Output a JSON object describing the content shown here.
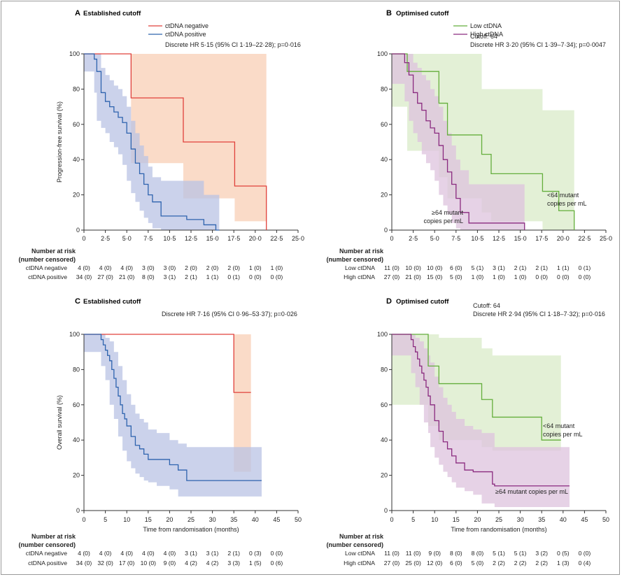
{
  "colors": {
    "neg": "#e0403a",
    "negBand": "#f8cfb6",
    "pos": "#2e63ae",
    "posBand": "#b9c3e4",
    "low": "#64ae3c",
    "lowBand": "#d9ebc8",
    "high": "#8a2a7f",
    "highBand": "#ddc3de"
  },
  "risk_header": [
    "Number at risk",
    "(number censored)"
  ],
  "chart_data": [
    {
      "type": "line",
      "step": true,
      "letter": "A",
      "title": "Established cutoff",
      "ylabel": "Progression-free survival (%)",
      "xlabel": "",
      "xlim": [
        0,
        25
      ],
      "ylim": [
        0,
        100
      ],
      "xticks": [
        "0",
        "2·5",
        "5·0",
        "7·5",
        "10·5",
        "12·5",
        "15·0",
        "17·5",
        "20·0",
        "22·5",
        "25·0"
      ],
      "yticks": [
        "0",
        "20",
        "40",
        "60",
        "80",
        "100"
      ],
      "legend": [
        "ctDNA negative",
        "ctDNA positive"
      ],
      "annotation": "Discrete HR 5·15 (95% CI 1·19–22·28); p=0·016",
      "series": [
        {
          "name": "ctDNA negative",
          "color": "neg",
          "x": [
            0,
            5.5,
            5.5,
            11.6,
            11.6,
            17.6,
            17.6,
            21.3,
            21.3
          ],
          "y": [
            100,
            100,
            75,
            75,
            50,
            50,
            25,
            25,
            0
          ],
          "band_x": [
            0,
            5.5,
            5.5,
            11.6,
            11.6,
            17.6,
            17.6,
            21.3
          ],
          "band_upper": [
            100,
            100,
            100,
            100,
            100,
            100,
            100,
            100
          ],
          "band_lower": [
            100,
            100,
            38,
            38,
            18,
            18,
            5,
            5
          ]
        },
        {
          "name": "ctDNA positive",
          "color": "pos",
          "x": [
            0,
            1.2,
            1.5,
            2.0,
            2.5,
            3.0,
            3.5,
            4.0,
            4.5,
            5.0,
            5.5,
            6.0,
            6.5,
            7.0,
            7.5,
            8.0,
            9.0,
            12.0,
            14.0,
            14.8,
            15.4,
            15.8
          ],
          "y": [
            100,
            97,
            90,
            78,
            73,
            70,
            67,
            64,
            61,
            55,
            46,
            38,
            32,
            26,
            20,
            16,
            8,
            6,
            3,
            3,
            0,
            0
          ],
          "band_x": [
            0,
            1.2,
            1.5,
            2.0,
            2.5,
            3.0,
            3.5,
            4.0,
            4.5,
            5.0,
            5.5,
            6.0,
            6.5,
            7.0,
            7.5,
            8.0,
            9.0,
            12.0,
            14.0,
            15.8
          ],
          "band_upper": [
            100,
            100,
            100,
            92,
            88,
            85,
            82,
            80,
            76,
            70,
            62,
            55,
            48,
            42,
            36,
            30,
            28,
            28,
            20,
            20
          ],
          "band_lower": [
            100,
            90,
            78,
            62,
            58,
            55,
            50,
            47,
            43,
            37,
            28,
            21,
            16,
            11,
            7,
            4,
            1,
            0,
            0,
            0
          ]
        }
      ],
      "risk_table": {
        "rows": [
          {
            "label": "ctDNA negative",
            "values": [
              "4 (0)",
              "4 (0)",
              "4 (0)",
              "3 (0)",
              "3 (0)",
              "2 (0)",
              "2 (0)",
              "2 (0)",
              "1 (0)",
              "1 (0)"
            ]
          },
          {
            "label": "ctDNA positive",
            "values": [
              "34 (0)",
              "27 (0)",
              "21 (0)",
              "8 (0)",
              "3 (1)",
              "2 (1)",
              "1 (1)",
              "0 (1)",
              "0 (0)",
              "0 (0)"
            ]
          }
        ]
      }
    },
    {
      "type": "line",
      "step": true,
      "letter": "B",
      "title": "Optimised cutoff",
      "ylabel": "",
      "xlabel": "",
      "xlim": [
        0,
        25
      ],
      "ylim": [
        0,
        100
      ],
      "xticks": [
        "0",
        "2·5",
        "5·0",
        "7·5",
        "10·5",
        "12·5",
        "15·0",
        "17·5",
        "20·0",
        "22·5",
        "25·0"
      ],
      "yticks": [
        "0",
        "20",
        "40",
        "60",
        "80",
        "100"
      ],
      "legend": [
        "Low ctDNA",
        "High ctDNA"
      ],
      "annotation_lines": [
        "Cutoff: 64",
        "Discrete HR 3·20 (95% CI 1·39–7·34); p=0·0047"
      ],
      "curve_labels": [
        {
          "lines": [
            "<64 mutant",
            "copies per mL"
          ],
          "anchor": "low"
        },
        {
          "lines": [
            "≥64 mutant",
            "copies per mL"
          ],
          "anchor": "high"
        }
      ],
      "series": [
        {
          "name": "Low ctDNA",
          "color": "low",
          "x": [
            0,
            1.8,
            1.8,
            5.5,
            5.5,
            6.5,
            6.5,
            10.5,
            10.5,
            11.6,
            11.6,
            17.6,
            17.6,
            19.5,
            19.5,
            21.3,
            21.3
          ],
          "y": [
            100,
            100,
            90,
            90,
            72,
            72,
            54,
            54,
            43,
            43,
            32,
            32,
            22,
            22,
            11,
            11,
            0
          ],
          "band_x": [
            0,
            1.8,
            5.5,
            6.5,
            10.5,
            11.6,
            17.6,
            19.5,
            21.3
          ],
          "band_upper": [
            100,
            100,
            100,
            100,
            80,
            80,
            68,
            68,
            68
          ],
          "band_lower": [
            100,
            70,
            45,
            30,
            18,
            10,
            5,
            0,
            0
          ]
        },
        {
          "name": "High ctDNA",
          "color": "high",
          "x": [
            0,
            1.5,
            2.0,
            2.5,
            3.0,
            3.5,
            4.0,
            4.5,
            5.0,
            5.5,
            6.0,
            6.5,
            7.0,
            7.5,
            8.0,
            9.0,
            12.0,
            15.5,
            15.5
          ],
          "y": [
            100,
            95,
            88,
            78,
            72,
            68,
            62,
            58,
            55,
            48,
            40,
            33,
            26,
            18,
            10,
            4,
            4,
            4,
            0
          ],
          "band_x": [
            0,
            1.5,
            2.0,
            2.5,
            3.0,
            3.5,
            4.0,
            4.5,
            5.0,
            5.5,
            6.0,
            6.5,
            7.0,
            7.5,
            8.0,
            9.0,
            12.0,
            15.5
          ],
          "band_upper": [
            100,
            100,
            100,
            95,
            92,
            88,
            85,
            80,
            76,
            70,
            62,
            55,
            48,
            40,
            34,
            26,
            26,
            26
          ],
          "band_lower": [
            100,
            83,
            73,
            62,
            55,
            50,
            43,
            38,
            34,
            28,
            20,
            14,
            9,
            4,
            1,
            0,
            0,
            0
          ]
        }
      ],
      "risk_table": {
        "rows": [
          {
            "label": "Low ctDNA",
            "values": [
              "11 (0)",
              "10 (0)",
              "10 (0)",
              "6 (0)",
              "5 (1)",
              "3 (1)",
              "2 (1)",
              "2 (1)",
              "1 (1)",
              "0 (1)"
            ]
          },
          {
            "label": "High ctDNA",
            "values": [
              "27 (0)",
              "21 (0)",
              "15 (0)",
              "5 (0)",
              "1 (0)",
              "1 (0)",
              "1 (0)",
              "0 (0)",
              "0 (0)",
              "0 (0)"
            ]
          }
        ]
      }
    },
    {
      "type": "line",
      "step": true,
      "letter": "C",
      "title": "Established cutoff",
      "ylabel": "Overall survival (%)",
      "xlabel": "Time from randomisation (months)",
      "xlim": [
        0,
        50
      ],
      "ylim": [
        0,
        100
      ],
      "xticks": [
        "0",
        "5",
        "10",
        "15",
        "20",
        "25",
        "30",
        "35",
        "40",
        "45",
        "50"
      ],
      "yticks": [
        "0",
        "20",
        "40",
        "60",
        "80",
        "100"
      ],
      "annotation": "Discrete HR 7·16 (95% CI 0·96–53·37); p=0·026",
      "series": [
        {
          "name": "ctDNA negative",
          "color": "neg",
          "x": [
            0,
            35,
            35,
            39
          ],
          "y": [
            100,
            100,
            67,
            67
          ],
          "band_x": [
            35,
            39
          ],
          "band_upper": [
            100,
            100
          ],
          "band_lower": [
            22,
            22
          ]
        },
        {
          "name": "ctDNA positive",
          "color": "pos",
          "x": [
            0,
            4,
            4.5,
            5,
            5.5,
            6,
            6.5,
            7,
            7.5,
            8,
            8.5,
            9,
            9.5,
            10,
            11,
            12,
            13,
            14,
            15,
            17,
            20,
            22,
            24,
            26,
            30,
            41.5
          ],
          "y": [
            100,
            97,
            94,
            91,
            88,
            85,
            80,
            75,
            70,
            65,
            60,
            55,
            52,
            48,
            42,
            37,
            35,
            32,
            29,
            29,
            26,
            23,
            17,
            17,
            17,
            17
          ],
          "band_x": [
            0,
            4,
            5,
            6,
            7,
            8,
            9,
            10,
            11,
            12,
            13,
            14,
            15,
            17,
            20,
            22,
            24,
            26,
            30,
            41.5
          ],
          "band_upper": [
            100,
            100,
            98,
            96,
            90,
            82,
            74,
            66,
            60,
            55,
            52,
            50,
            46,
            44,
            40,
            38,
            36,
            36,
            36,
            36
          ],
          "band_lower": [
            100,
            90,
            82,
            74,
            60,
            52,
            42,
            34,
            28,
            24,
            21,
            19,
            17,
            16,
            14,
            12,
            8,
            8,
            8,
            8
          ]
        }
      ],
      "risk_table": {
        "rows": [
          {
            "label": "ctDNA negative",
            "values": [
              "4 (0)",
              "4 (0)",
              "4 (0)",
              "4 (0)",
              "4 (0)",
              "3 (1)",
              "3 (1)",
              "2 (1)",
              "0 (3)",
              "0 (0)"
            ]
          },
          {
            "label": "ctDNA positive",
            "values": [
              "34 (0)",
              "32 (0)",
              "17 (0)",
              "10 (0)",
              "9 (0)",
              "4 (2)",
              "4 (2)",
              "3 (3)",
              "1 (5)",
              "0 (6)"
            ]
          }
        ]
      }
    },
    {
      "type": "line",
      "step": true,
      "letter": "D",
      "title": "Optimised cutoff",
      "ylabel": "",
      "xlabel": "Time from randomisation (months)",
      "xlim": [
        0,
        50
      ],
      "ylim": [
        0,
        100
      ],
      "xticks": [
        "0",
        "5",
        "10",
        "15",
        "20",
        "25",
        "30",
        "35",
        "40",
        "45",
        "50"
      ],
      "yticks": [
        "0",
        "20",
        "40",
        "60",
        "80",
        "100"
      ],
      "annotation_lines": [
        "Cutoff: 64",
        "Discrete HR 2·94 (95% CI 1·18–7·32); p=0·016"
      ],
      "curve_labels": [
        {
          "lines": [
            "<64 mutant",
            "copies per mL"
          ],
          "anchor": "low"
        },
        {
          "lines": [
            "≥64 mutant copies per mL"
          ],
          "anchor": "high"
        }
      ],
      "series": [
        {
          "name": "Low ctDNA",
          "color": "low",
          "x": [
            0,
            8.5,
            8.5,
            11,
            11,
            21,
            21,
            23.5,
            23.5,
            35,
            35,
            39.5
          ],
          "y": [
            100,
            100,
            82,
            82,
            72,
            72,
            63,
            63,
            53,
            53,
            40,
            40
          ],
          "band_x": [
            0,
            8.5,
            11,
            21,
            23.5,
            35,
            39.5
          ],
          "band_upper": [
            100,
            100,
            98,
            92,
            88,
            88,
            88
          ],
          "band_lower": [
            100,
            60,
            48,
            40,
            36,
            34,
            34
          ]
        },
        {
          "name": "High ctDNA",
          "color": "high",
          "x": [
            0,
            4.5,
            5,
            5.5,
            6,
            6.5,
            7,
            7.5,
            8,
            8.5,
            9,
            10,
            11,
            12,
            13,
            14,
            15,
            17,
            19,
            21,
            23.5,
            24,
            30,
            41.5
          ],
          "y": [
            100,
            97,
            93,
            90,
            86,
            82,
            78,
            74,
            70,
            65,
            60,
            51,
            45,
            39,
            35,
            31,
            27,
            23,
            22,
            22,
            15,
            14,
            14,
            14
          ],
          "band_x": [
            0,
            4.5,
            5.5,
            6.5,
            7.5,
            8.5,
            9,
            10,
            11,
            12,
            13,
            14,
            15,
            17,
            19,
            21,
            24,
            30,
            41.5
          ],
          "band_upper": [
            100,
            100,
            98,
            96,
            92,
            88,
            84,
            76,
            70,
            64,
            60,
            56,
            52,
            48,
            46,
            44,
            36,
            36,
            36
          ],
          "band_lower": [
            100,
            88,
            78,
            70,
            60,
            50,
            44,
            36,
            30,
            26,
            22,
            19,
            16,
            13,
            11,
            9,
            4,
            2,
            2
          ]
        }
      ],
      "risk_table": {
        "rows": [
          {
            "label": "Low ctDNA",
            "values": [
              "11 (0)",
              "11 (0)",
              "9 (0)",
              "8 (0)",
              "8 (0)",
              "5 (1)",
              "5 (1)",
              "3 (2)",
              "0 (5)",
              "0 (0)"
            ]
          },
          {
            "label": "High ctDNA",
            "values": [
              "27 (0)",
              "25 (0)",
              "12 (0)",
              "6 (0)",
              "5 (0)",
              "2 (2)",
              "2 (2)",
              "2 (2)",
              "1 (3)",
              "0 (4)"
            ]
          }
        ]
      }
    }
  ]
}
